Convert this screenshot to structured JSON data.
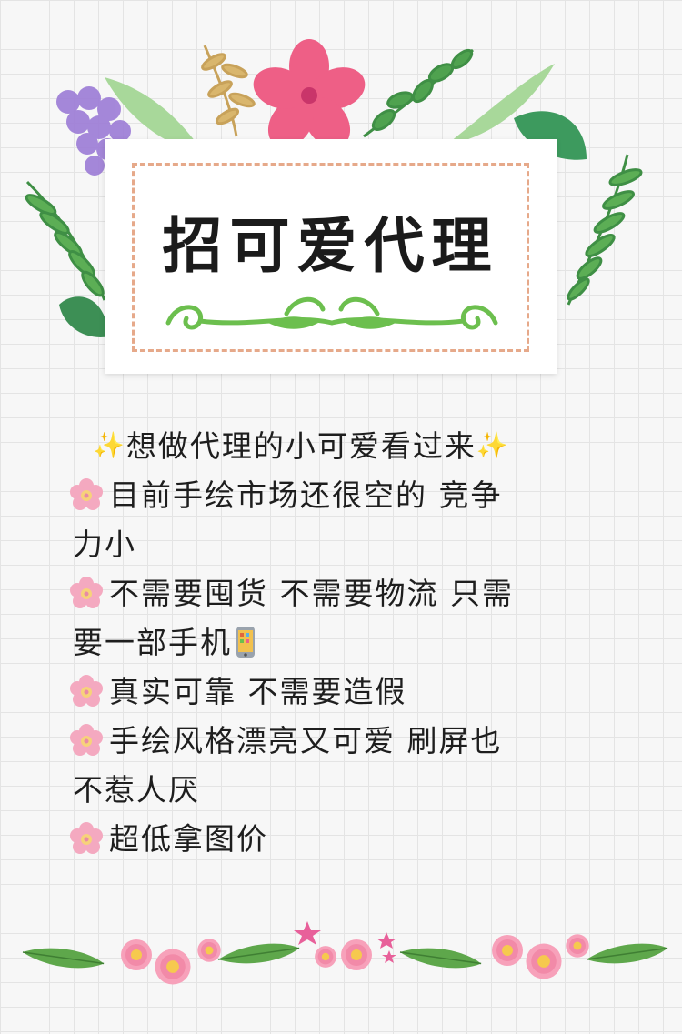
{
  "title": "招可爱代理",
  "headline": "想做代理的小可爱看过来",
  "sparkle_icon": "✨",
  "bullet_icon": "pink-flower-icon",
  "phone_icon": "mobile-phone-icon",
  "colors": {
    "background": "#f7f7f7",
    "grid": "#e4e4e4",
    "dashed_border": "#e6a98a",
    "flower_pink": "#ee5f86",
    "leaf_green": "#6cbf4e",
    "text": "#1e1e1e"
  },
  "bullets": [
    {
      "line1": "目前手绘市场还很空的 竞争",
      "line2": "力小"
    },
    {
      "line1": "不需要囤货 不需要物流 只需",
      "line2": "要一部手机"
    },
    {
      "line1": "真实可靠 不需要造假",
      "line2": ""
    },
    {
      "line1": "手绘风格漂亮又可爱 刷屏也",
      "line2": "不惹人厌"
    },
    {
      "line1": "超低拿图价",
      "line2": ""
    }
  ]
}
